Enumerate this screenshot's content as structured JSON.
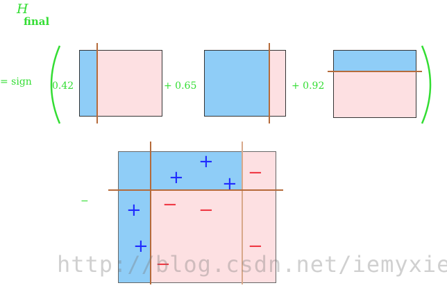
{
  "formula": {
    "title": "H",
    "subscript": "final",
    "equals_sign": "= sign",
    "coefficients": [
      "0.42",
      "+ 0.65",
      "+ 0.92"
    ],
    "minus_label": "−"
  },
  "classifiers": [
    {
      "weight": 0.42,
      "split": "vertical-left"
    },
    {
      "weight": 0.65,
      "split": "vertical-right"
    },
    {
      "weight": 0.92,
      "split": "horizontal-top"
    }
  ],
  "final_plot": {
    "plus_symbol": "+",
    "minus_symbol": "−"
  },
  "colors": {
    "positive_region": "#8fcdf7",
    "negative_region": "#fde0e2",
    "split_line": "#b56a3a",
    "formula_text": "#33dd33",
    "plus_marker": "#1f2bff",
    "minus_marker": "#ef3a45"
  },
  "watermark": "http://blog.csdn.net/iemyxie"
}
